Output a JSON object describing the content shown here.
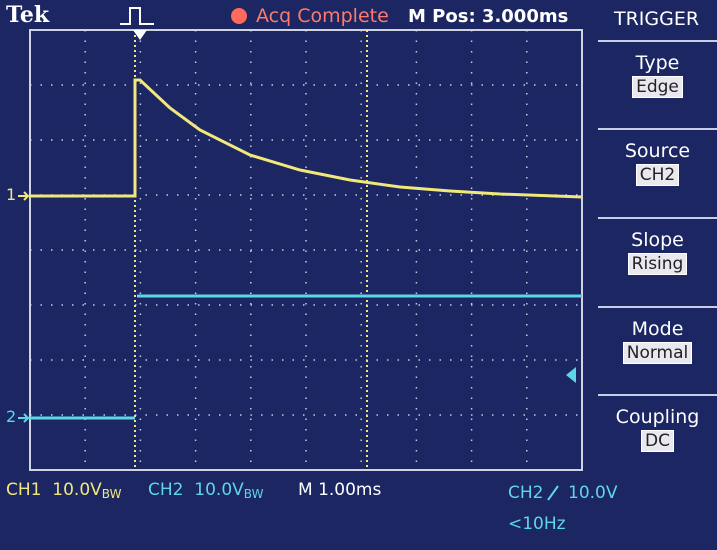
{
  "header": {
    "brand": "Tek",
    "status": "Acq Complete",
    "position": "M Pos: 3.000ms"
  },
  "menu": {
    "title": "TRIGGER",
    "items": [
      {
        "label": "Type",
        "value": "Edge"
      },
      {
        "label": "Source",
        "value": "CH2"
      },
      {
        "label": "Slope",
        "value": "Rising"
      },
      {
        "label": "Mode",
        "value": "Normal"
      },
      {
        "label": "Coupling",
        "value": "DC"
      }
    ]
  },
  "markers": {
    "ch1": "1",
    "ch2": "2"
  },
  "footer": {
    "ch1": {
      "name": "CH1",
      "scale": "10.0V",
      "bw": "BW"
    },
    "ch2": {
      "name": "CH2",
      "scale": "10.0V",
      "bw": "BW"
    },
    "timebase": "M 1.00ms",
    "trigger": {
      "source": "CH2",
      "level": "10.0V",
      "frequency": "<10Hz"
    }
  }
}
